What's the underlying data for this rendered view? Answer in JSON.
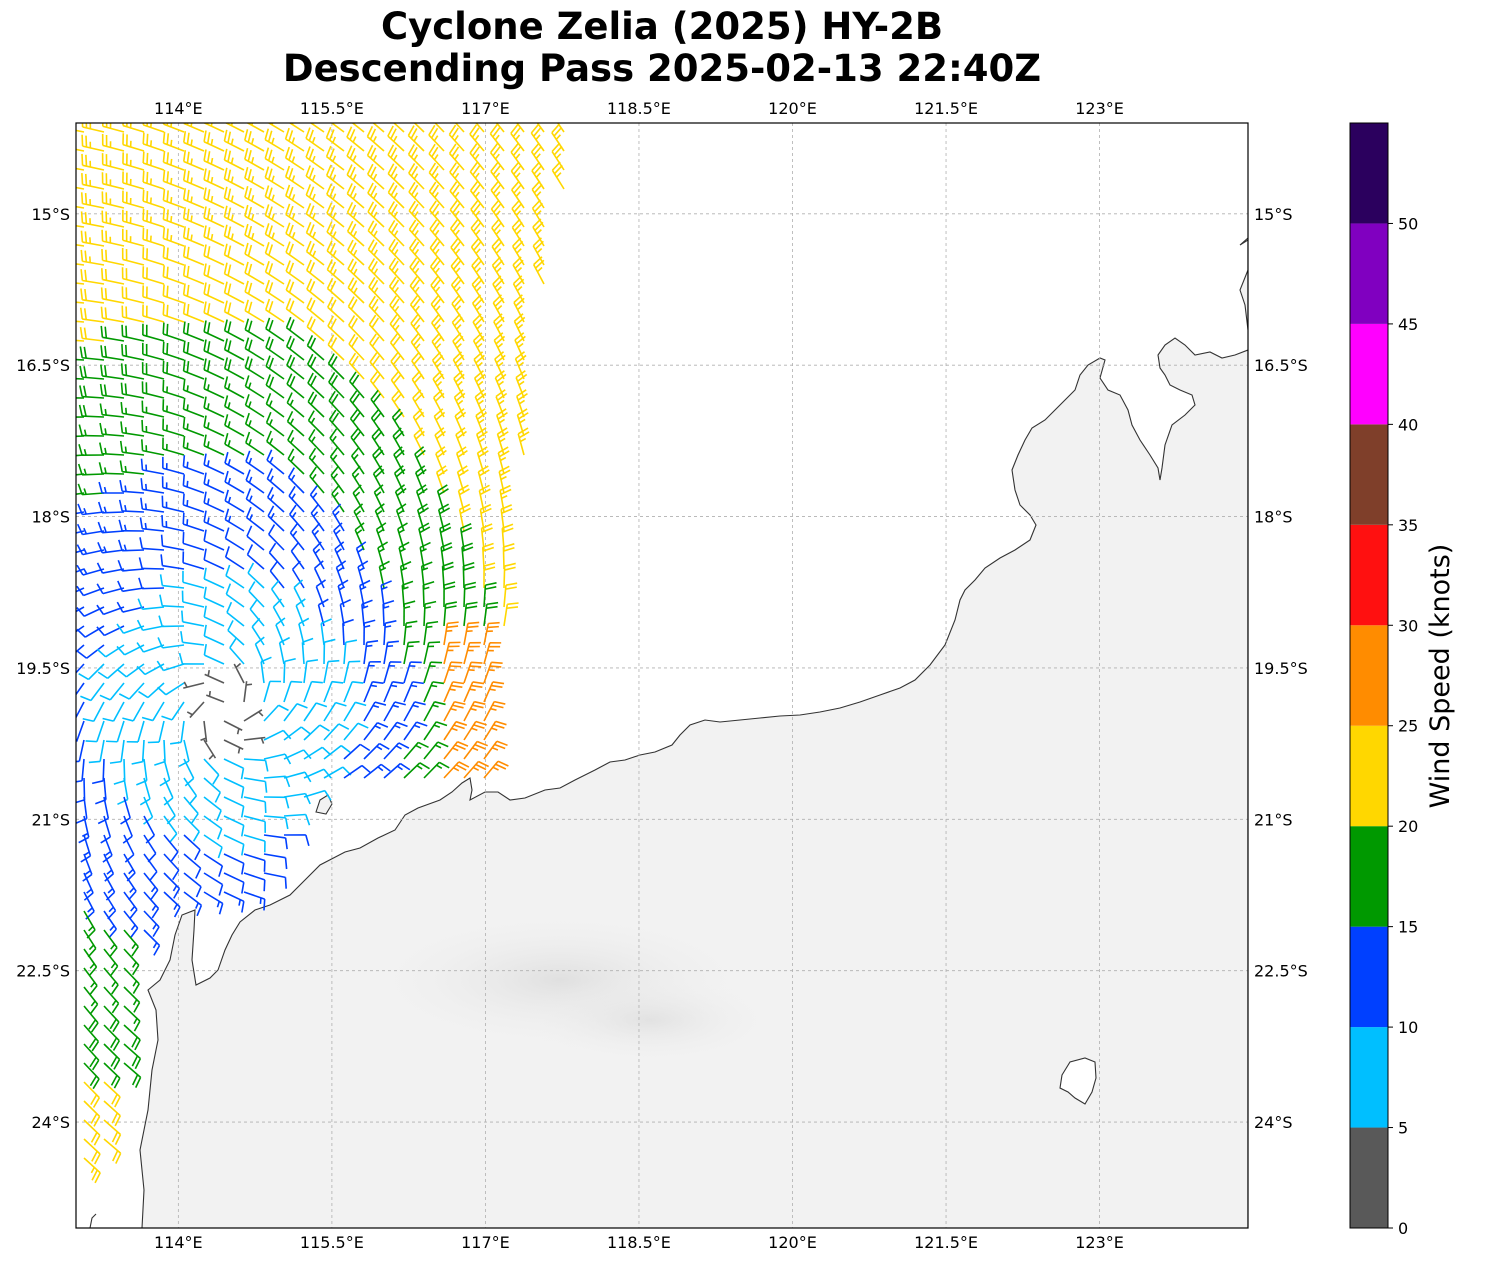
{
  "title": {
    "line1": "Cyclone Zelia (2025) HY-2B",
    "line2": "Descending Pass 2025-02-13 22:40Z"
  },
  "map": {
    "lon_labels": [
      "114°E",
      "115.5°E",
      "117°E",
      "118.5°E",
      "120°E",
      "121.5°E",
      "123°E"
    ],
    "lon_values": [
      114,
      115.5,
      117,
      118.5,
      120,
      121.5,
      123
    ],
    "lat_labels": [
      "15°S",
      "16.5°S",
      "18°S",
      "19.5°S",
      "21°S",
      "22.5°S",
      "24°S"
    ],
    "lat_values": [
      -15,
      -16.5,
      -18,
      -19.5,
      -21,
      -22.5,
      -24
    ],
    "lon_range": [
      113.0,
      124.45
    ],
    "lat_range": [
      -25.05,
      -14.1
    ],
    "gridlines": true,
    "land_color": "#f2f2f2",
    "ocean_color": "#ffffff",
    "coast_color": "#333333"
  },
  "wind_barbs": {
    "storm_center": [
      114.45,
      -19.9
    ],
    "swath_east_edge_lon": 117.0,
    "inflow_angle_deg": 25
  },
  "colorbar": {
    "label": "Wind Speed (knots)",
    "ticks": [
      "0",
      "5",
      "10",
      "15",
      "20",
      "25",
      "30",
      "35",
      "40",
      "45",
      "50"
    ],
    "bins": [
      {
        "min": 0,
        "max": 5,
        "color": "#595959"
      },
      {
        "min": 5,
        "max": 10,
        "color": "#00bfff"
      },
      {
        "min": 10,
        "max": 15,
        "color": "#0040ff"
      },
      {
        "min": 15,
        "max": 20,
        "color": "#009900"
      },
      {
        "min": 20,
        "max": 25,
        "color": "#ffd700"
      },
      {
        "min": 25,
        "max": 30,
        "color": "#ff8c00"
      },
      {
        "min": 30,
        "max": 35,
        "color": "#ff1010"
      },
      {
        "min": 35,
        "max": 40,
        "color": "#7f3f2a"
      },
      {
        "min": 40,
        "max": 45,
        "color": "#ff00ff"
      },
      {
        "min": 45,
        "max": 50,
        "color": "#8000c0"
      },
      {
        "min": 50,
        "max": 55,
        "color": "#2b005e"
      }
    ]
  }
}
